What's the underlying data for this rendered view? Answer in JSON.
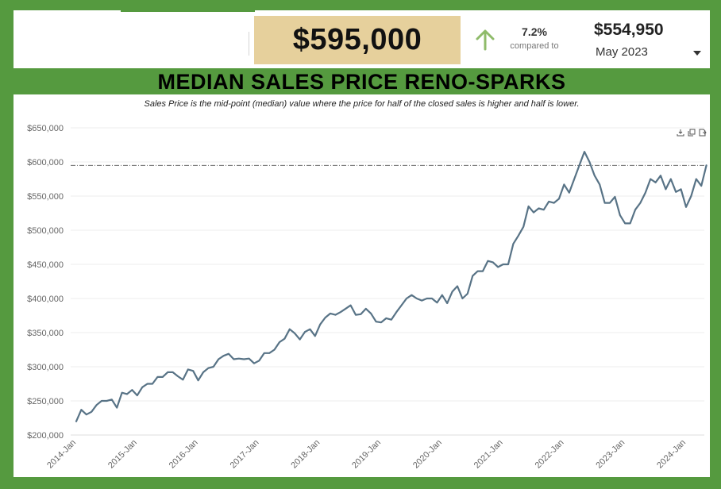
{
  "header": {
    "current_value": "$595,000",
    "change_percent": "7.2%",
    "compared_label": "compared to",
    "previous_value": "$554,950",
    "previous_period": "May 2023",
    "up_color": "#8fbb6a",
    "kpi_bg": "#e6d09c"
  },
  "title": "MEDIAN SALES PRICE RENO-SPARKS",
  "subtitle": "Sales Price is the mid-point (median) value where the price for half of the closed sales is higher and half is lower.",
  "toolbar": [
    "download-icon",
    "copy-icon",
    "export-icon"
  ],
  "chart_data": {
    "type": "line",
    "title": "MEDIAN SALES PRICE RENO-SPARKS",
    "subtitle": "Sales Price is the mid-point (median) value where the price for half of the closed sales is higher and half is lower.",
    "xlabel": "",
    "ylabel": "",
    "start": "2014-01",
    "x_ticks": [
      "2014-Jan",
      "2015-Jan",
      "2016-Jan",
      "2017-Jan",
      "2018-Jan",
      "2019-Jan",
      "2020-Jan",
      "2021-Jan",
      "2022-Jan",
      "2023-Jan",
      "2024-Jan"
    ],
    "y_ticks": [
      200000,
      250000,
      300000,
      350000,
      400000,
      450000,
      500000,
      550000,
      600000,
      650000
    ],
    "y_tick_labels": [
      "$200,000",
      "$250,000",
      "$300,000",
      "$350,000",
      "$400,000",
      "$450,000",
      "$500,000",
      "$550,000",
      "$600,000",
      "$650,000"
    ],
    "ylim": [
      200000,
      650000
    ],
    "reference_line": 595000,
    "grid": "horizontal",
    "line_color": "#587386",
    "values": [
      220000,
      237000,
      230000,
      234000,
      244000,
      250000,
      250000,
      252000,
      240000,
      262000,
      260000,
      266000,
      258000,
      270000,
      275000,
      275000,
      285000,
      285000,
      292000,
      292000,
      286000,
      281000,
      296000,
      294000,
      280000,
      292000,
      298000,
      300000,
      311000,
      316000,
      319000,
      311000,
      312000,
      311000,
      312000,
      305000,
      309000,
      320000,
      320000,
      325000,
      336000,
      341000,
      355000,
      349000,
      340000,
      351000,
      355000,
      345000,
      362000,
      372000,
      378000,
      376000,
      380000,
      385000,
      390000,
      376000,
      377000,
      385000,
      378000,
      366000,
      365000,
      371000,
      369000,
      380000,
      390000,
      400000,
      405000,
      400000,
      397000,
      400000,
      400000,
      394000,
      405000,
      393000,
      410000,
      418000,
      400000,
      407000,
      433000,
      440000,
      440000,
      455000,
      453000,
      446000,
      450000,
      450000,
      480000,
      492000,
      505000,
      535000,
      526000,
      532000,
      530000,
      542000,
      540000,
      546000,
      567000,
      555000,
      575000,
      595000,
      615000,
      600000,
      580000,
      567000,
      540000,
      540000,
      549000,
      522000,
      510000,
      510000,
      530000,
      540000,
      555000,
      575000,
      570000,
      580000,
      560000,
      575000,
      556000,
      560000,
      534000,
      550000,
      575000,
      565000,
      595000
    ]
  }
}
